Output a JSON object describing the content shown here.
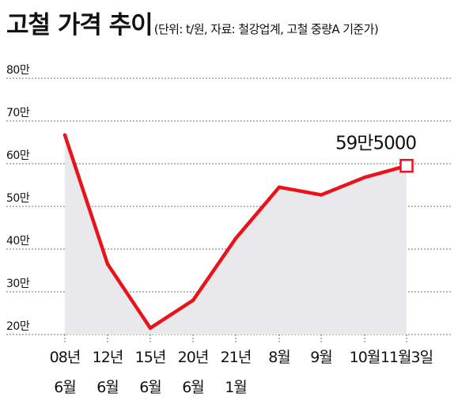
{
  "header": {
    "title": "고철 가격 추이",
    "subtitle": "(단위: t/원, 자료: 철강업계, 고철 중량A 기준가)"
  },
  "chart_data": {
    "type": "area",
    "title": "고철 가격 추이",
    "subtitle": "(단위: t/원, 자료: 철강업계, 고철 중량A 기준가)",
    "categories": [
      [
        "08년",
        "6월"
      ],
      [
        "12년",
        "6월"
      ],
      [
        "15년",
        "6월"
      ],
      [
        "20년",
        "6월"
      ],
      [
        "21년",
        "1월"
      ],
      [
        "8월",
        ""
      ],
      [
        "9월",
        ""
      ],
      [
        "10월",
        ""
      ],
      [
        "11월3일",
        ""
      ]
    ],
    "values": [
      667000,
      365000,
      215000,
      280000,
      425000,
      545000,
      527000,
      568000,
      595000
    ],
    "y_ticks": [
      {
        "value": 200000,
        "label": "20만"
      },
      {
        "value": 300000,
        "label": "30만"
      },
      {
        "value": 400000,
        "label": "40만"
      },
      {
        "value": 500000,
        "label": "50만"
      },
      {
        "value": 600000,
        "label": "60만"
      },
      {
        "value": 700000,
        "label": "70만"
      },
      {
        "value": 800000,
        "label": "80만"
      }
    ],
    "ylim": [
      200000,
      800000
    ],
    "grid": true,
    "annotation": {
      "index": 8,
      "text": "59만5000"
    },
    "colors": {
      "line": "#e8141b",
      "area": "#e9e9eb",
      "grid": "#6e6e6e",
      "marker_fill": "#ffffff"
    }
  }
}
